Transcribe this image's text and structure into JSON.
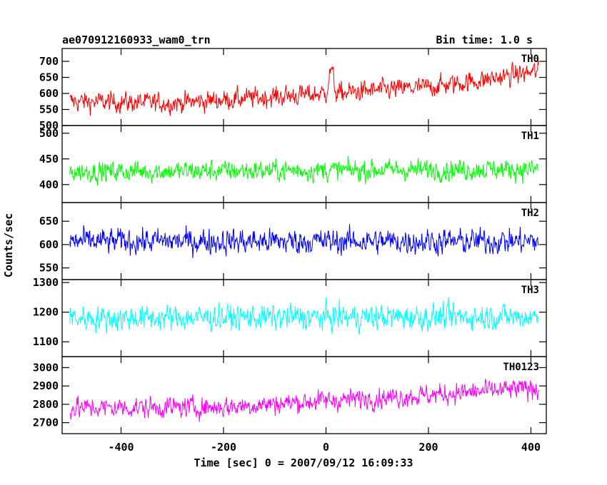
{
  "chart_data": {
    "type": "line",
    "title_left": "ae070912160933_wam0_trn",
    "title_right": "Bin time: 1.0 s",
    "xlabel": "Time [sec] 0 = 2007/09/12 16:09:33",
    "ylabel": "Counts/sec",
    "xlim": [
      -515,
      430
    ],
    "xticks": [
      -400,
      -200,
      0,
      200,
      400
    ],
    "x_range": [
      -500,
      415
    ],
    "bin_time": 1.0,
    "panels": [
      {
        "name": "TH0",
        "color": "#ff0000",
        "ylim": [
          500,
          740
        ],
        "yticks": [
          500,
          550,
          600,
          650,
          700
        ],
        "trend": [
          [
            -500,
            575
          ],
          [
            -300,
            570
          ],
          [
            -100,
            590
          ],
          [
            0,
            600
          ],
          [
            10,
            680
          ],
          [
            20,
            600
          ],
          [
            100,
            610
          ],
          [
            200,
            620
          ],
          [
            300,
            640
          ],
          [
            415,
            670
          ]
        ],
        "noise": 28
      },
      {
        "name": "TH1",
        "color": "#00ff00",
        "ylim": [
          365,
          515
        ],
        "yticks": [
          400,
          450,
          500
        ],
        "trend": [
          [
            -500,
            425
          ],
          [
            415,
            430
          ]
        ],
        "noise": 18
      },
      {
        "name": "TH2",
        "color": "#0000ff",
        "ylim": [
          525,
          690
        ],
        "yticks": [
          550,
          600,
          650
        ],
        "trend": [
          [
            -500,
            607
          ],
          [
            415,
            607
          ]
        ],
        "noise": 24
      },
      {
        "name": "TH3",
        "color": "#00ffff",
        "ylim": [
          1050,
          1310
        ],
        "yticks": [
          1100,
          1200,
          1300
        ],
        "trend": [
          [
            -500,
            1180
          ],
          [
            415,
            1185
          ]
        ],
        "noise": 38
      },
      {
        "name": "TH0123",
        "color": "#ff00ff",
        "ylim": [
          2640,
          3060
        ],
        "yticks": [
          2700,
          2800,
          2900,
          3000
        ],
        "trend": [
          [
            -500,
            2780
          ],
          [
            -200,
            2785
          ],
          [
            0,
            2820
          ],
          [
            200,
            2850
          ],
          [
            415,
            2890
          ]
        ],
        "noise": 50
      }
    ]
  }
}
